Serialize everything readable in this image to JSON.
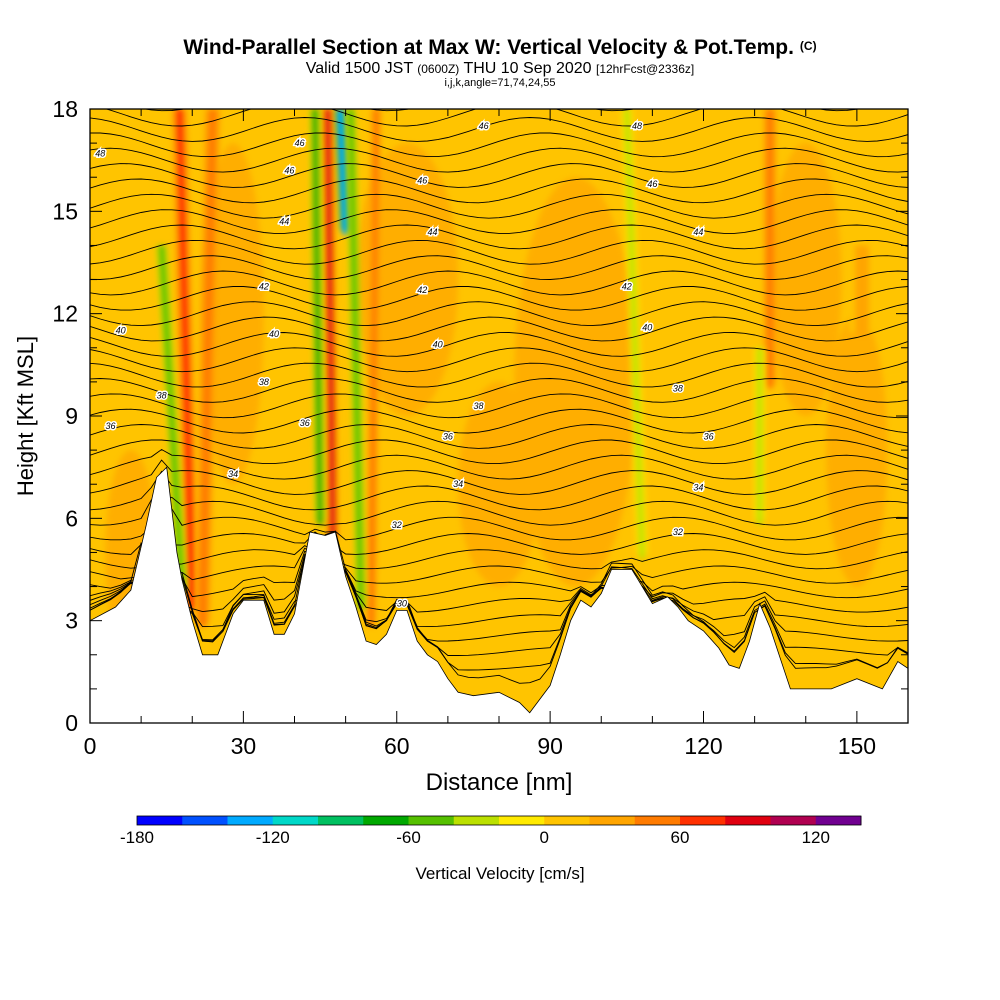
{
  "header": {
    "title": "Wind-Parallel Section at Max W: Vertical Velocity & Pot.Temp.",
    "title_mark": "(C)",
    "subtitle_main": "Valid 1500 JST",
    "subtitle_zulu": "(0600Z)",
    "subtitle_date": "THU 10 Sep 2020",
    "subtitle_fcst": "[12hrFcst@2336z]",
    "params": "i,j,k,angle=71,74,24,55"
  },
  "chart_data": {
    "type": "heatmap",
    "title": "Wind-Parallel Section at Max W: Vertical Velocity & Pot.Temp.",
    "xlabel": "Distance [nm]",
    "ylabel": "Height [Kft MSL]",
    "xlim": [
      0,
      160
    ],
    "ylim": [
      0,
      18
    ],
    "xticks": [
      0,
      30,
      60,
      90,
      120,
      150
    ],
    "xtick_labels": [
      "0",
      "30",
      "60",
      "90",
      "120",
      "150"
    ],
    "yticks": [
      0,
      3,
      6,
      9,
      12,
      15,
      18
    ],
    "ytick_labels": [
      "0",
      "3",
      "6",
      "9",
      "12",
      "15",
      "18"
    ],
    "colorbar": {
      "label": "Vertical Velocity [cm/s]",
      "min": -180,
      "max": 140,
      "step": 20,
      "tick_values": [
        -180,
        -120,
        -60,
        0,
        60,
        120
      ],
      "tick_labels": [
        "-180",
        "-120",
        "-60",
        "0",
        "60",
        "120"
      ],
      "colors": [
        "#0000ff",
        "#0050ff",
        "#00aaff",
        "#00d8c8",
        "#00c060",
        "#00a800",
        "#55c000",
        "#bbe000",
        "#ffea00",
        "#ffc400",
        "#ffa500",
        "#ff7b00",
        "#ff3000",
        "#e00010",
        "#b00050",
        "#700090"
      ]
    },
    "terrain": [
      [
        0,
        3.0
      ],
      [
        5,
        3.4
      ],
      [
        8,
        3.9
      ],
      [
        11,
        5.8
      ],
      [
        13,
        7.2
      ],
      [
        15,
        7.5
      ],
      [
        17,
        5.0
      ],
      [
        18,
        4.2
      ],
      [
        20,
        3.0
      ],
      [
        22,
        2.0
      ],
      [
        25,
        2.0
      ],
      [
        28,
        3.2
      ],
      [
        30,
        3.6
      ],
      [
        34,
        3.6
      ],
      [
        36,
        2.6
      ],
      [
        38,
        2.6
      ],
      [
        40,
        3.2
      ],
      [
        42,
        4.8
      ],
      [
        43,
        5.6
      ],
      [
        46,
        5.5
      ],
      [
        48,
        5.6
      ],
      [
        50,
        4.3
      ],
      [
        52,
        3.4
      ],
      [
        54,
        2.4
      ],
      [
        56,
        2.3
      ],
      [
        58,
        2.6
      ],
      [
        60,
        3.3
      ],
      [
        62,
        3.3
      ],
      [
        64,
        2.4
      ],
      [
        66,
        2.0
      ],
      [
        68,
        1.8
      ],
      [
        70,
        1.3
      ],
      [
        72,
        0.9
      ],
      [
        75,
        0.8
      ],
      [
        80,
        0.9
      ],
      [
        84,
        0.6
      ],
      [
        86,
        0.3
      ],
      [
        88,
        0.7
      ],
      [
        90,
        1.1
      ],
      [
        92,
        2.0
      ],
      [
        94,
        3.0
      ],
      [
        96,
        3.6
      ],
      [
        98,
        3.4
      ],
      [
        100,
        3.8
      ],
      [
        102,
        4.5
      ],
      [
        106,
        4.5
      ],
      [
        108,
        4.0
      ],
      [
        110,
        3.5
      ],
      [
        113,
        3.7
      ],
      [
        115,
        3.4
      ],
      [
        117,
        3.0
      ],
      [
        120,
        2.7
      ],
      [
        123,
        2.2
      ],
      [
        125,
        1.7
      ],
      [
        127,
        1.6
      ],
      [
        129,
        2.4
      ],
      [
        131,
        3.5
      ],
      [
        133,
        2.8
      ],
      [
        135,
        1.9
      ],
      [
        137,
        1.0
      ],
      [
        140,
        1.0
      ],
      [
        143,
        1.0
      ],
      [
        145,
        1.0
      ],
      [
        150,
        1.3
      ],
      [
        155,
        1.0
      ],
      [
        158,
        1.8
      ],
      [
        160,
        1.6
      ]
    ],
    "isentrope_labels": [
      {
        "x": 2,
        "y": 16.7,
        "text": "48"
      },
      {
        "x": 41,
        "y": 17.0,
        "text": "46"
      },
      {
        "x": 77,
        "y": 17.5,
        "text": "46"
      },
      {
        "x": 107,
        "y": 17.5,
        "text": "48"
      },
      {
        "x": 39,
        "y": 16.2,
        "text": "46"
      },
      {
        "x": 65,
        "y": 15.9,
        "text": "46"
      },
      {
        "x": 110,
        "y": 15.8,
        "text": "46"
      },
      {
        "x": 38,
        "y": 14.7,
        "text": "44"
      },
      {
        "x": 67,
        "y": 14.4,
        "text": "44"
      },
      {
        "x": 119,
        "y": 14.4,
        "text": "44"
      },
      {
        "x": 34,
        "y": 12.8,
        "text": "42"
      },
      {
        "x": 65,
        "y": 12.7,
        "text": "42"
      },
      {
        "x": 105,
        "y": 12.8,
        "text": "42"
      },
      {
        "x": 6,
        "y": 11.5,
        "text": "40"
      },
      {
        "x": 36,
        "y": 11.4,
        "text": "40"
      },
      {
        "x": 68,
        "y": 11.1,
        "text": "40"
      },
      {
        "x": 109,
        "y": 11.6,
        "text": "40"
      },
      {
        "x": 34,
        "y": 10.0,
        "text": "38"
      },
      {
        "x": 14,
        "y": 9.6,
        "text": "38"
      },
      {
        "x": 4,
        "y": 8.7,
        "text": "36"
      },
      {
        "x": 42,
        "y": 8.8,
        "text": "36"
      },
      {
        "x": 76,
        "y": 9.3,
        "text": "38"
      },
      {
        "x": 115,
        "y": 9.8,
        "text": "38"
      },
      {
        "x": 70,
        "y": 8.4,
        "text": "36"
      },
      {
        "x": 121,
        "y": 8.4,
        "text": "36"
      },
      {
        "x": 28,
        "y": 7.3,
        "text": "34"
      },
      {
        "x": 72,
        "y": 7.0,
        "text": "34"
      },
      {
        "x": 119,
        "y": 6.9,
        "text": "34"
      },
      {
        "x": 60,
        "y": 5.8,
        "text": "32"
      },
      {
        "x": 115,
        "y": 5.6,
        "text": "32"
      },
      {
        "x": 61,
        "y": 3.5,
        "text": "30"
      }
    ],
    "updraft_bands": [
      {
        "x_top": 17.5,
        "x_bot": 20,
        "y_top": 18,
        "y_bot": 3.5,
        "width": 3,
        "value": 70
      },
      {
        "x_top": 24,
        "x_bot": 22,
        "y_top": 18,
        "y_bot": 3.0,
        "width": 3,
        "value": 55
      },
      {
        "x_top": 46.5,
        "x_bot": 47.5,
        "y_top": 18,
        "y_bot": 5.5,
        "width": 2,
        "value": 90
      },
      {
        "x_top": 56,
        "x_bot": 55,
        "y_top": 18,
        "y_bot": 3.0,
        "width": 2,
        "value": 45
      },
      {
        "x_top": 133,
        "x_bot": 133,
        "y_top": 18,
        "y_bot": 10,
        "width": 2.5,
        "value": 55
      },
      {
        "x_top": 151,
        "x_bot": 151,
        "y_top": 14,
        "y_bot": 11.5,
        "width": 5,
        "value": 30
      }
    ],
    "downdraft_bands": [
      {
        "x_top": 14,
        "x_bot": 18,
        "y_top": 14,
        "y_bot": 4.0,
        "width": 2,
        "value": -60
      },
      {
        "x_top": 44,
        "x_bot": 45,
        "y_top": 18,
        "y_bot": 6.0,
        "width": 2,
        "value": -80
      },
      {
        "x_top": 49,
        "x_bot": 50,
        "y_top": 18,
        "y_bot": 14.5,
        "width": 2,
        "value": -140
      },
      {
        "x_top": 51,
        "x_bot": 53,
        "y_top": 18,
        "y_bot": 3.5,
        "width": 2,
        "value": -55
      },
      {
        "x_top": 105,
        "x_bot": 108,
        "y_top": 18,
        "y_bot": 5.0,
        "width": 2,
        "value": -25
      },
      {
        "x_top": 131,
        "x_bot": 131,
        "y_top": 11,
        "y_bot": 6.0,
        "width": 2,
        "value": -40
      }
    ]
  }
}
